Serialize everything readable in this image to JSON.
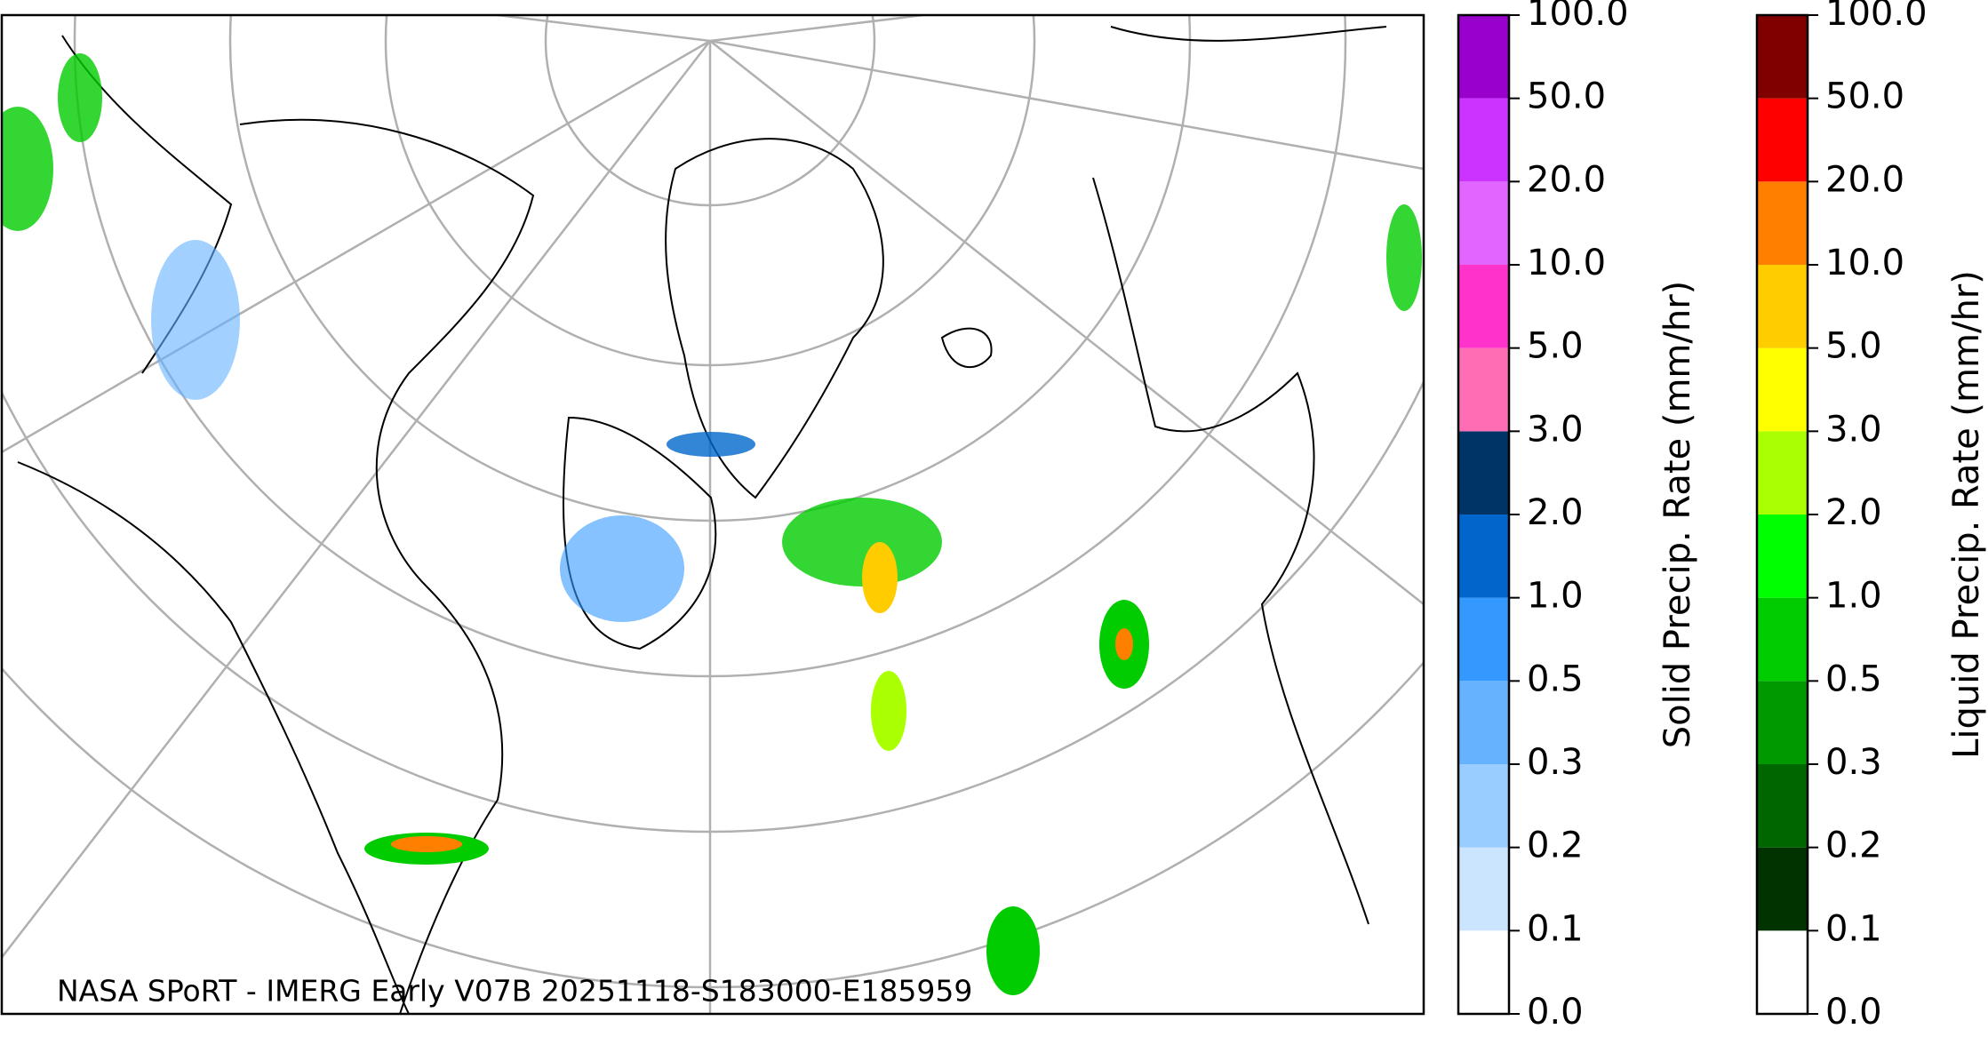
{
  "map": {
    "annotation": "NASA SPoRT - IMERG Early V07B 20251118-S183000-E185959"
  },
  "colorbars": [
    {
      "label": "Solid Precip. Rate (mm/hr)",
      "ticks": [
        {
          "value": 0,
          "label": "0.0"
        },
        {
          "value": 0.1,
          "label": "0.1"
        },
        {
          "value": 0.2,
          "label": "0.2"
        },
        {
          "value": 0.3,
          "label": "0.3"
        },
        {
          "value": 0.5,
          "label": "0.5"
        },
        {
          "value": 1,
          "label": "1.0"
        },
        {
          "value": 2,
          "label": "2.0"
        },
        {
          "value": 3,
          "label": "3.0"
        },
        {
          "value": 5,
          "label": "5.0"
        },
        {
          "value": 10,
          "label": "10.0"
        },
        {
          "value": 20,
          "label": "20.0"
        },
        {
          "value": 50,
          "label": "50.0"
        },
        {
          "value": 100,
          "label": "100.0"
        }
      ],
      "colors": [
        "#ffffff",
        "#cce5ff",
        "#99ccff",
        "#66b2ff",
        "#3399ff",
        "#0066cc",
        "#003366",
        "#ff6eb4",
        "#ff33cc",
        "#e066ff",
        "#cc33ff",
        "#9900cc"
      ]
    },
    {
      "label": "Liquid Precip. Rate (mm/hr)",
      "ticks": [
        {
          "value": 0,
          "label": "0.0"
        },
        {
          "value": 0.1,
          "label": "0.1"
        },
        {
          "value": 0.2,
          "label": "0.2"
        },
        {
          "value": 0.3,
          "label": "0.3"
        },
        {
          "value": 0.5,
          "label": "0.5"
        },
        {
          "value": 1,
          "label": "1.0"
        },
        {
          "value": 2,
          "label": "2.0"
        },
        {
          "value": 3,
          "label": "3.0"
        },
        {
          "value": 5,
          "label": "5.0"
        },
        {
          "value": 10,
          "label": "10.0"
        },
        {
          "value": 20,
          "label": "20.0"
        },
        {
          "value": 50,
          "label": "50.0"
        },
        {
          "value": 100,
          "label": "100.0"
        }
      ],
      "colors": [
        "#ffffff",
        "#003300",
        "#006600",
        "#009900",
        "#00cc00",
        "#00ff00",
        "#aaff00",
        "#ffff00",
        "#ffcc00",
        "#ff8000",
        "#ff0000",
        "#800000",
        "#400000"
      ]
    }
  ]
}
